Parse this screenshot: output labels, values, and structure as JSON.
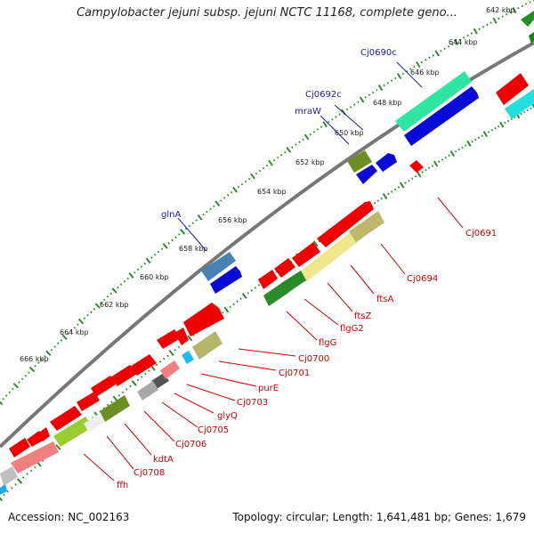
{
  "title": "Campylobacter jejuni subsp. jejuni NCTC 11168, complete geno...",
  "footer": {
    "accession": "Accession: NC_002163",
    "topology": "Topology: circular; Length: 1,641,481 bp; Genes: 1,679"
  },
  "colors": {
    "backbone": "#777777",
    "tick_dots": "#2e8b2e",
    "forward_label": "#1a1aa8",
    "reverse_label": "#cc0000"
  },
  "tick_labels": [
    "642 kbp",
    "644 kbp",
    "646 kbp",
    "648 kbp",
    "650 kbp",
    "652 kbp",
    "654 kbp",
    "656 kbp",
    "658 kbp",
    "660 kbp",
    "662 kbp",
    "664 kbp",
    "666 kbp"
  ],
  "forward_gene_labels": [
    "Cj0690c",
    "Cj0692c",
    "mraW",
    "glnA"
  ],
  "reverse_gene_labels": [
    "Cj0691",
    "Cj0694",
    "ftsA",
    "ftsZ",
    "flgG2",
    "flgG",
    "Cj0700",
    "Cj0701",
    "purE",
    "Cj0703",
    "glyQ",
    "Cj0705",
    "Cj0706",
    "kdtA",
    "Cj0708",
    "ffh"
  ]
}
